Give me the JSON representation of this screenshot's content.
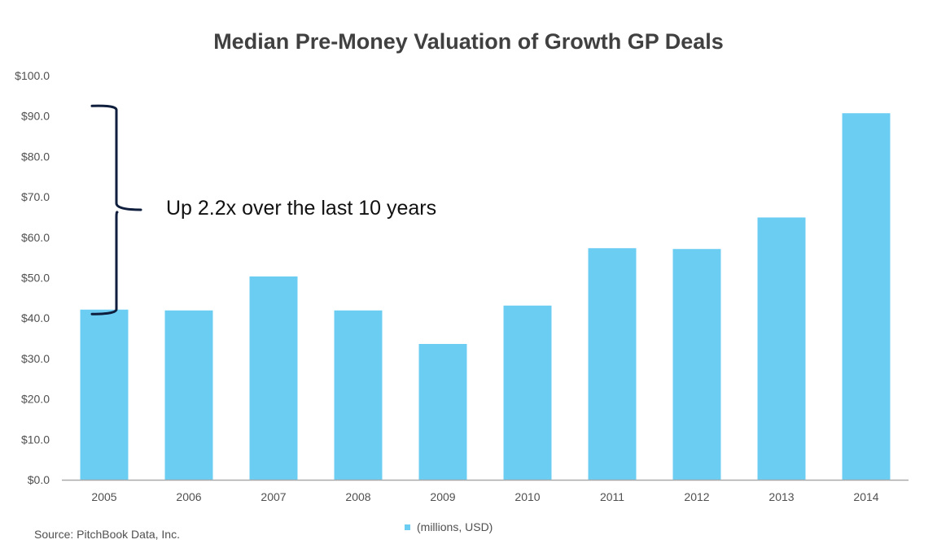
{
  "chart_data": {
    "type": "bar",
    "title": "Median Pre-Money Valuation of Growth GP Deals",
    "categories": [
      "2005",
      "2006",
      "2007",
      "2008",
      "2009",
      "2010",
      "2011",
      "2012",
      "2013",
      "2014"
    ],
    "series": [
      {
        "name": "(millions, USD)",
        "values": [
          42.1,
          41.9,
          50.3,
          41.9,
          33.6,
          43.1,
          57.3,
          57.1,
          64.9,
          90.7
        ]
      }
    ],
    "ylim": [
      0,
      100
    ],
    "yticks": [
      0,
      10,
      20,
      30,
      40,
      50,
      60,
      70,
      80,
      90,
      100
    ],
    "ytick_labels": [
      "$0.0",
      "$10.0",
      "$20.0",
      "$30.0",
      "$40.0",
      "$50.0",
      "$60.0",
      "$70.0",
      "$80.0",
      "$90.0",
      "$100.0"
    ],
    "xlabel": "",
    "ylabel": "",
    "grid": false,
    "legend": "bottom-center",
    "annotation": {
      "text": "Up 2.2x over the last 10 years",
      "brace_from": 41,
      "brace_to": 92.5
    },
    "source": "Source: PitchBook Data, Inc.",
    "colors": {
      "bar": "#6ccdf3",
      "brace": "#0f1e3d",
      "axis": "#aaaaaa",
      "text": "#505050",
      "title": "#404040"
    }
  }
}
